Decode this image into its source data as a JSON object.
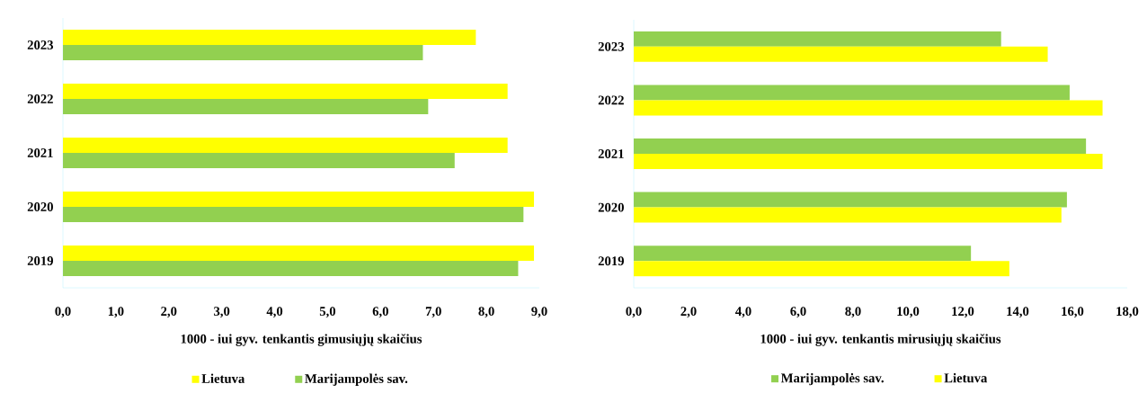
{
  "chart_data": [
    {
      "type": "bar",
      "orientation": "horizontal",
      "categories": [
        "2023",
        "2022",
        "2021",
        "2020",
        "2019"
      ],
      "series": [
        {
          "name": "Lietuva",
          "color": "#ffff00",
          "values": [
            7.8,
            8.4,
            8.4,
            8.9,
            8.9
          ]
        },
        {
          "name": "Marijampolės sav.",
          "color": "#92d050",
          "values": [
            6.8,
            6.9,
            7.4,
            8.7,
            8.6
          ]
        }
      ],
      "xlim": [
        0,
        9
      ],
      "xticks": [
        {
          "value": 0,
          "label": "0,0"
        },
        {
          "value": 1,
          "label": "1,0"
        },
        {
          "value": 2,
          "label": "2,0"
        },
        {
          "value": 3,
          "label": "3,0"
        },
        {
          "value": 4,
          "label": "4,0"
        },
        {
          "value": 5,
          "label": "5,0"
        },
        {
          "value": 6,
          "label": "6,0"
        },
        {
          "value": 7,
          "label": "7,0"
        },
        {
          "value": 8,
          "label": "8,0"
        },
        {
          "value": 9,
          "label": "9,0"
        }
      ],
      "xlabel": "1000 - iui gyv. tenkantis gimusiųjų  skaičius",
      "legend": "bottom",
      "grid": false
    },
    {
      "type": "bar",
      "orientation": "horizontal",
      "categories": [
        "2023",
        "2022",
        "2021",
        "2020",
        "2019"
      ],
      "series": [
        {
          "name": "Marijampolės sav.",
          "color": "#92d050",
          "values": [
            13.4,
            15.9,
            16.5,
            15.8,
            12.3
          ]
        },
        {
          "name": "Lietuva",
          "color": "#ffff00",
          "values": [
            15.1,
            17.1,
            17.1,
            15.6,
            13.7
          ]
        }
      ],
      "xlim": [
        0,
        18
      ],
      "xticks": [
        {
          "value": 0,
          "label": "0,0"
        },
        {
          "value": 2,
          "label": "2,0"
        },
        {
          "value": 4,
          "label": "4,0"
        },
        {
          "value": 6,
          "label": "6,0"
        },
        {
          "value": 8,
          "label": "8,0"
        },
        {
          "value": 10,
          "label": "10,0"
        },
        {
          "value": 12,
          "label": "12,0"
        },
        {
          "value": 14,
          "label": "14,0"
        },
        {
          "value": 16,
          "label": "16,0"
        },
        {
          "value": 18,
          "label": "18,0"
        }
      ],
      "xlabel": "1000 - iui gyv. tenkantis mirusiųjų  skaičius",
      "legend": "bottom",
      "grid": false
    }
  ]
}
